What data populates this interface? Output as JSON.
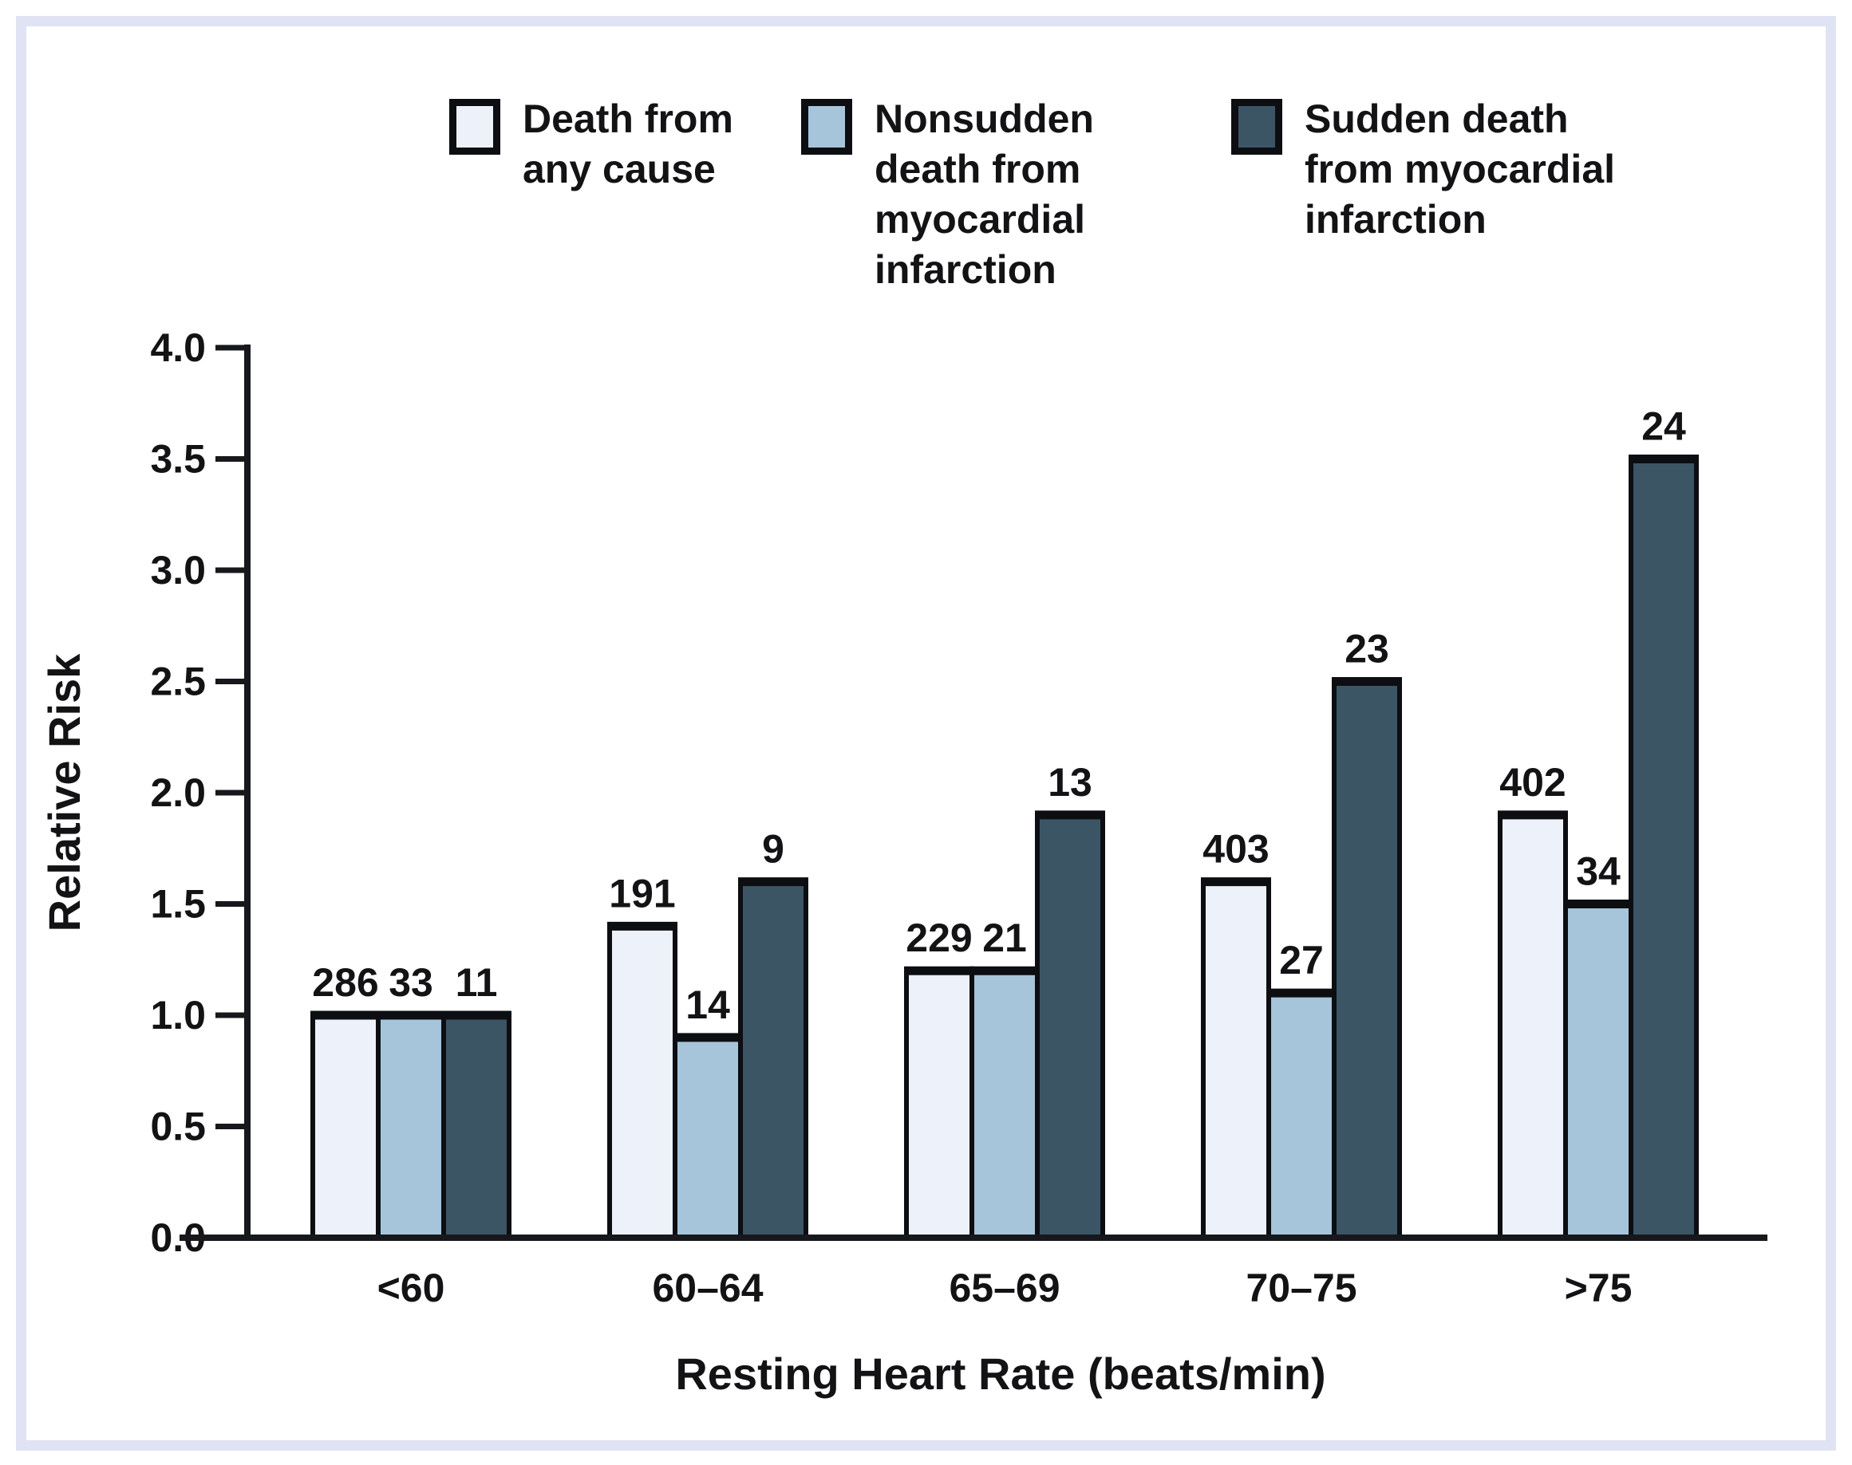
{
  "chart_data": {
    "type": "bar",
    "title": "",
    "categories": [
      "<60",
      "60–64",
      "65–69",
      "70–75",
      ">75"
    ],
    "series": [
      {
        "name": "Death from any cause",
        "color": "#edf2fa",
        "values": [
          1.0,
          1.4,
          1.2,
          1.6,
          1.9
        ],
        "bar_labels": [
          "286",
          "191",
          "229",
          "403",
          "402"
        ]
      },
      {
        "name": "Nonsudden death from myocardial infarction",
        "color": "#a6c5db",
        "values": [
          1.0,
          0.9,
          1.2,
          1.1,
          1.5
        ],
        "bar_labels": [
          "33",
          "14",
          "21",
          "27",
          "34"
        ]
      },
      {
        "name": "Sudden death from myocardial infarction",
        "color": "#3c5565",
        "values": [
          1.0,
          1.6,
          1.9,
          2.5,
          3.5
        ],
        "bar_labels": [
          "11",
          "9",
          "13",
          "23",
          "24"
        ]
      }
    ],
    "xlabel": "Resting Heart Rate (beats/min)",
    "ylabel": "Relative Risk",
    "ylim": [
      0.0,
      4.0
    ],
    "ytick_step": 0.5,
    "yticks": [
      "0.0",
      "0.5",
      "1.0",
      "1.5",
      "2.0",
      "2.5",
      "3.0",
      "3.5",
      "4.0"
    ],
    "grid": false,
    "legend_position": "top"
  },
  "legend": {
    "items": [
      {
        "label": "Death from\nany cause",
        "color": "#edf2fa"
      },
      {
        "label": "Nonsudden\ndeath from\nmyocardial\ninfarction",
        "color": "#a6c5db"
      },
      {
        "label": "Sudden death\nfrom myocardial\ninfarction",
        "color": "#3c5565"
      }
    ]
  },
  "colors": {
    "frame": "#dfe3f3",
    "bar_outline": "#0c0e12",
    "axis": "#16181c",
    "text": "#131316"
  }
}
